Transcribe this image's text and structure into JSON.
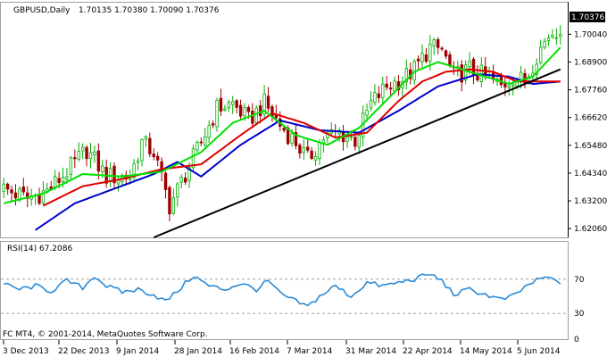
{
  "header": {
    "symbol": "GBPUSD,Daily",
    "ohlc": "1.70135 1.70380 1.70090 1.70376"
  },
  "rsi_label": "RSI(14) 67.2086",
  "copyright": "FC MT4, © 2001-2014, MetaQuotes Software Corp.",
  "colors": {
    "bull_candle": "#00b000",
    "bear_candle": "#a00000",
    "ma_fast": "#00e000",
    "ma_mid": "#e00000",
    "ma_slow": "#0000cc",
    "trendline": "#000000",
    "rsi_line": "#2a8ad6",
    "grid": "#a0a0a0",
    "price_tag_bg": "#000000",
    "price_tag_fg": "#ffffff"
  },
  "chart_data": [
    {
      "type": "candlestick",
      "symbol": "GBPUSD",
      "timeframe": "Daily",
      "ylim": [
        1.617,
        1.713
      ],
      "yticks": [
        "1.70040",
        "1.68900",
        "1.67760",
        "1.66620",
        "1.65480",
        "1.64340",
        "1.63200",
        "1.62060"
      ],
      "current_price": "1.70376",
      "x_labels": [
        "3 Dec 2013",
        "22 Dec 2013",
        "9 Jan 2014",
        "28 Jan 2014",
        "16 Feb 2014",
        "7 Mar 2014",
        "31 Mar 2014",
        "22 Apr 2014",
        "14 May 2014",
        "5 Jun 2014"
      ],
      "close_anchors": [
        [
          0,
          1.637
        ],
        [
          6,
          1.633
        ],
        [
          11,
          1.636
        ],
        [
          16,
          1.644
        ],
        [
          21,
          1.653
        ],
        [
          26,
          1.642
        ],
        [
          32,
          1.642
        ],
        [
          35,
          1.656
        ],
        [
          38,
          1.652
        ],
        [
          42,
          1.63
        ],
        [
          46,
          1.643
        ],
        [
          50,
          1.656
        ],
        [
          54,
          1.67
        ],
        [
          58,
          1.672
        ],
        [
          62,
          1.665
        ],
        [
          66,
          1.672
        ],
        [
          70,
          1.663
        ],
        [
          74,
          1.656
        ],
        [
          77,
          1.649
        ],
        [
          81,
          1.658
        ],
        [
          85,
          1.66
        ],
        [
          89,
          1.657
        ],
        [
          93,
          1.672
        ],
        [
          97,
          1.679
        ],
        [
          101,
          1.682
        ],
        [
          104,
          1.686
        ],
        [
          108,
          1.695
        ],
        [
          111,
          1.694
        ],
        [
          114,
          1.683
        ],
        [
          118,
          1.686
        ],
        [
          122,
          1.683
        ],
        [
          126,
          1.679
        ],
        [
          129,
          1.683
        ],
        [
          132,
          1.681
        ],
        [
          135,
          1.692
        ],
        [
          138,
          1.7
        ],
        [
          141,
          1.7037
        ]
      ],
      "ma_fast_anchors": [
        [
          0,
          1.631
        ],
        [
          10,
          1.635
        ],
        [
          20,
          1.643
        ],
        [
          30,
          1.642
        ],
        [
          40,
          1.644
        ],
        [
          50,
          1.652
        ],
        [
          58,
          1.664
        ],
        [
          66,
          1.669
        ],
        [
          74,
          1.659
        ],
        [
          82,
          1.655
        ],
        [
          90,
          1.662
        ],
        [
          98,
          1.675
        ],
        [
          104,
          1.685
        ],
        [
          110,
          1.689
        ],
        [
          116,
          1.686
        ],
        [
          122,
          1.683
        ],
        [
          128,
          1.68
        ],
        [
          134,
          1.683
        ],
        [
          141,
          1.695
        ]
      ],
      "ma_mid_anchors": [
        [
          10,
          1.63
        ],
        [
          20,
          1.638
        ],
        [
          30,
          1.641
        ],
        [
          40,
          1.645
        ],
        [
          50,
          1.647
        ],
        [
          60,
          1.659
        ],
        [
          68,
          1.668
        ],
        [
          76,
          1.664
        ],
        [
          84,
          1.658
        ],
        [
          92,
          1.66
        ],
        [
          100,
          1.673
        ],
        [
          106,
          1.681
        ],
        [
          112,
          1.685
        ],
        [
          118,
          1.686
        ],
        [
          124,
          1.685
        ],
        [
          130,
          1.681
        ],
        [
          136,
          1.681
        ],
        [
          141,
          1.681
        ]
      ],
      "ma_slow_anchors": [
        [
          8,
          1.62
        ],
        [
          18,
          1.631
        ],
        [
          28,
          1.637
        ],
        [
          38,
          1.643
        ],
        [
          44,
          1.648
        ],
        [
          50,
          1.642
        ],
        [
          60,
          1.655
        ],
        [
          70,
          1.665
        ],
        [
          80,
          1.661
        ],
        [
          90,
          1.66
        ],
        [
          100,
          1.669
        ],
        [
          110,
          1.679
        ],
        [
          120,
          1.684
        ],
        [
          128,
          1.683
        ],
        [
          134,
          1.68
        ],
        [
          141,
          1.681
        ]
      ],
      "trendline": [
        [
          38,
          1.617
        ],
        [
          141,
          1.686
        ]
      ]
    },
    {
      "type": "line",
      "name": "RSI(14)",
      "ylim": [
        0,
        100
      ],
      "yticks": [
        70,
        30,
        0
      ],
      "levels": [
        70,
        30
      ],
      "last_value": 67.2086,
      "anchors": [
        [
          0,
          64
        ],
        [
          4,
          58
        ],
        [
          8,
          62
        ],
        [
          12,
          56
        ],
        [
          16,
          68
        ],
        [
          20,
          60
        ],
        [
          23,
          74
        ],
        [
          26,
          62
        ],
        [
          30,
          55
        ],
        [
          34,
          58
        ],
        [
          38,
          52
        ],
        [
          41,
          44
        ],
        [
          44,
          56
        ],
        [
          48,
          74
        ],
        [
          52,
          62
        ],
        [
          56,
          58
        ],
        [
          60,
          65
        ],
        [
          64,
          58
        ],
        [
          67,
          68
        ],
        [
          70,
          53
        ],
        [
          74,
          44
        ],
        [
          77,
          38
        ],
        [
          80,
          50
        ],
        [
          84,
          62
        ],
        [
          88,
          50
        ],
        [
          92,
          66
        ],
        [
          96,
          62
        ],
        [
          100,
          66
        ],
        [
          104,
          70
        ],
        [
          108,
          76
        ],
        [
          111,
          68
        ],
        [
          114,
          52
        ],
        [
          118,
          58
        ],
        [
          122,
          52
        ],
        [
          126,
          46
        ],
        [
          129,
          50
        ],
        [
          133,
          64
        ],
        [
          137,
          72
        ],
        [
          141,
          67
        ]
      ]
    }
  ]
}
